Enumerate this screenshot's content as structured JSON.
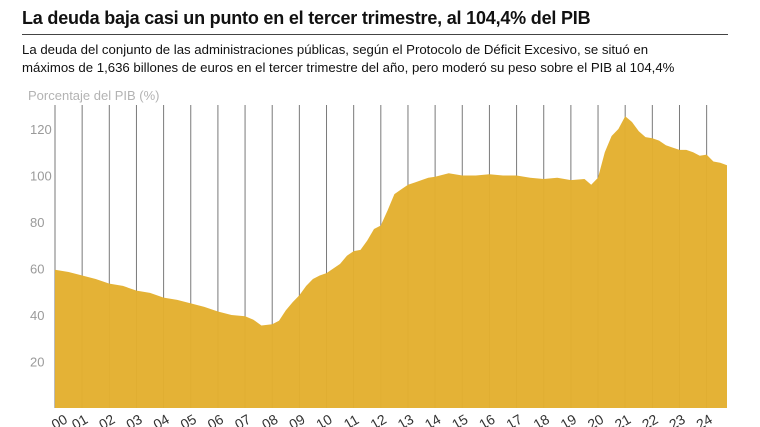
{
  "header": {
    "title": "La deuda baja casi un punto en el tercer trimestre, al 104,4% del PIB",
    "subtitle_lines": [
      "La deuda del conjunto de las administraciones públicas, según el Protocolo de Déficit Excesivo, se situó en",
      "máximos de 1,636 billones de euros en el tercer trimestre del año, pero moderó su peso sobre el PIB al 104,4%"
    ]
  },
  "chart_data": {
    "type": "area",
    "ylabel": "Porcentaje del PIB (%)",
    "xlabel": "",
    "ylim": [
      0,
      130
    ],
    "yticks": [
      20,
      40,
      60,
      80,
      100,
      120
    ],
    "xlim": [
      2000,
      2024.75
    ],
    "grid": "vertical",
    "color": "#e3b02f",
    "xtick_labels": [
      "00",
      "01",
      "02",
      "03",
      "04",
      "05",
      "06",
      "07",
      "08",
      "09",
      "10",
      "11",
      "12",
      "13",
      "14",
      "15",
      "16",
      "17",
      "18",
      "19",
      "20",
      "21",
      "22",
      "23",
      "24"
    ],
    "x": [
      2000,
      2000.5,
      2001,
      2001.5,
      2002,
      2002.5,
      2003,
      2003.5,
      2004,
      2004.5,
      2005,
      2005.5,
      2006,
      2006.5,
      2007,
      2007.3,
      2007.6,
      2008,
      2008.25,
      2008.5,
      2008.75,
      2009,
      2009.25,
      2009.5,
      2009.75,
      2010,
      2010.25,
      2010.5,
      2010.75,
      2011,
      2011.25,
      2011.5,
      2011.75,
      2012,
      2012.25,
      2012.5,
      2012.75,
      2013,
      2013.25,
      2013.5,
      2013.75,
      2014,
      2014.5,
      2015,
      2015.5,
      2016,
      2016.5,
      2017,
      2017.5,
      2018,
      2018.5,
      2019,
      2019.5,
      2019.75,
      2020,
      2020.25,
      2020.5,
      2020.75,
      2021,
      2021.25,
      2021.5,
      2021.75,
      2022,
      2022.25,
      2022.5,
      2022.75,
      2023,
      2023.25,
      2023.5,
      2023.75,
      2024,
      2024.25,
      2024.5,
      2024.75
    ],
    "values": [
      59.5,
      58.5,
      57,
      55.5,
      53.5,
      52.5,
      50.5,
      49.5,
      47.5,
      46.5,
      45,
      43.5,
      41.5,
      40,
      39.5,
      38,
      35.5,
      36,
      37.5,
      42,
      45.5,
      48.5,
      52.5,
      55.5,
      57,
      58,
      60,
      62,
      65.5,
      67.5,
      68,
      72,
      77,
      78.5,
      85,
      92,
      94,
      96,
      97,
      98,
      99,
      99.5,
      101,
      100,
      100,
      100.5,
      100,
      100,
      99,
      98.5,
      99,
      98,
      98.5,
      96,
      99,
      110,
      117,
      120,
      125.5,
      123,
      119,
      116.5,
      116,
      115,
      113,
      112,
      111,
      111,
      110,
      108.5,
      109,
      106,
      105.5,
      104.4
    ]
  }
}
